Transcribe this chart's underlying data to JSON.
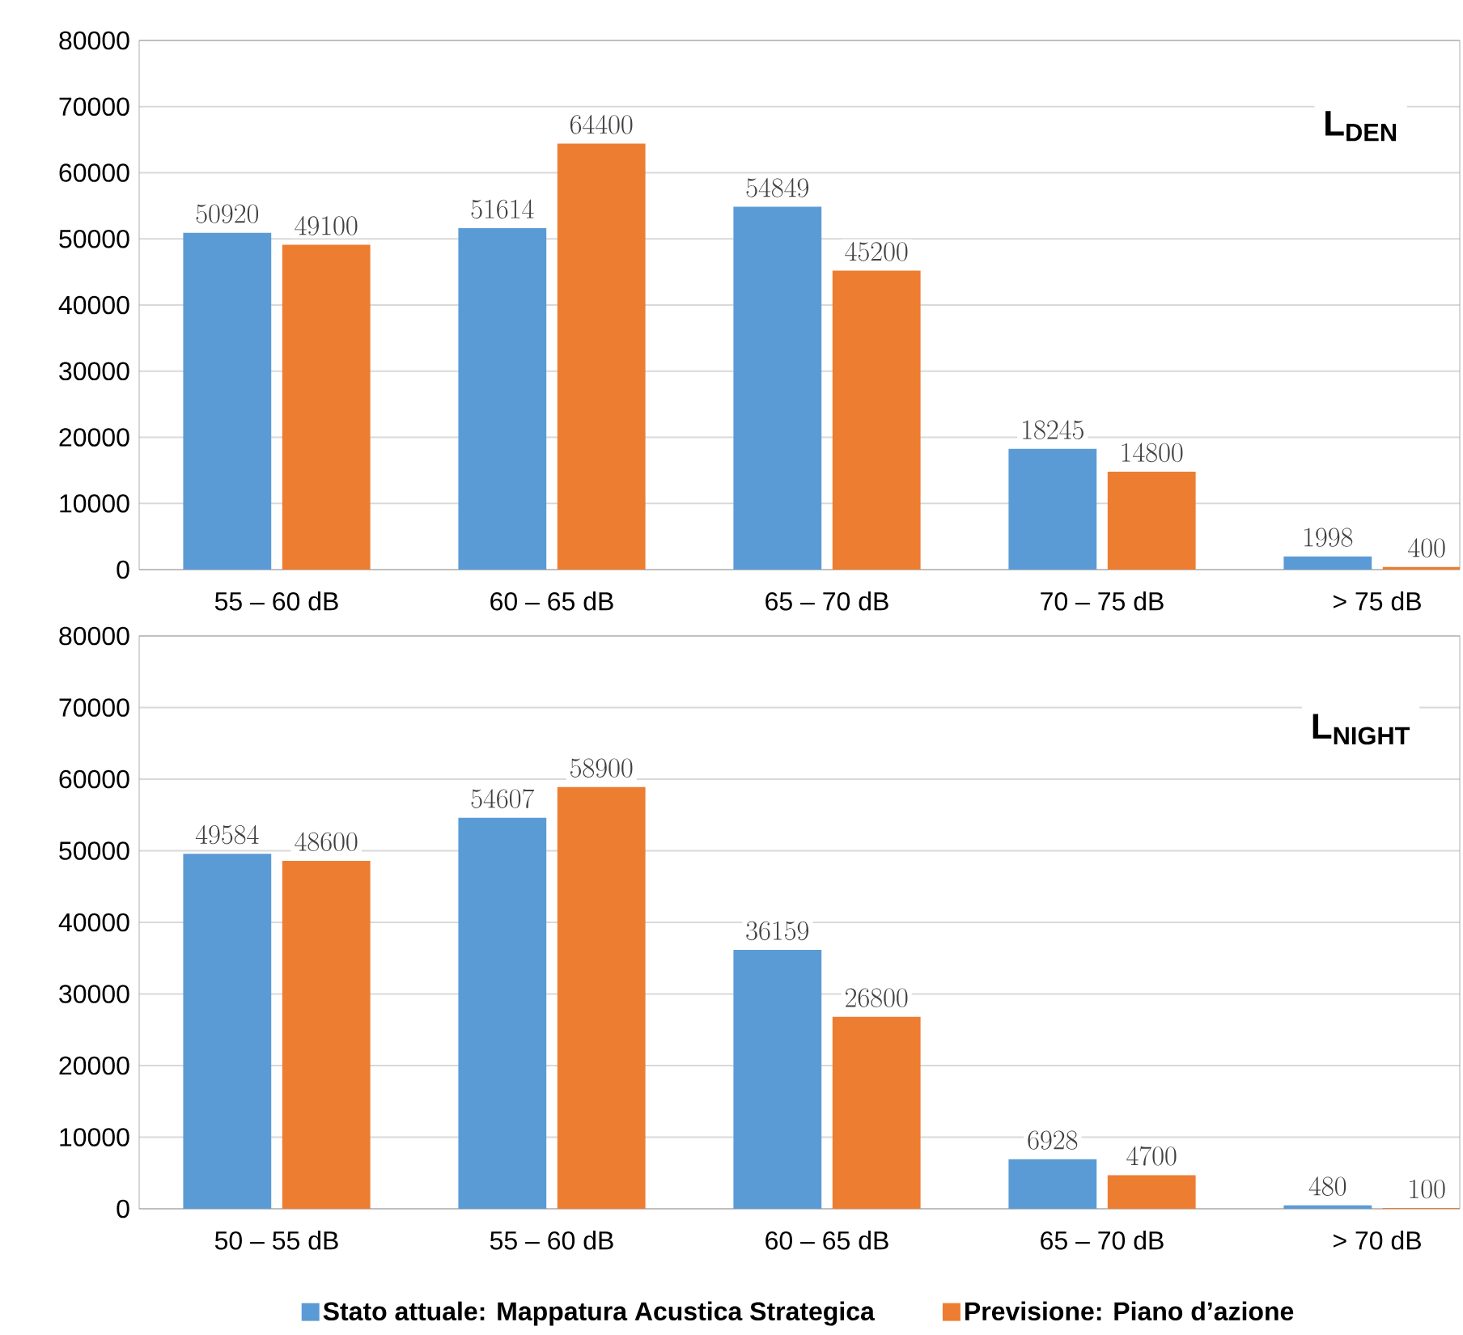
{
  "chart_data": [
    {
      "type": "bar",
      "title": "L$_{DEN}$",
      "categories": [
        "55 – 60 dB",
        "60 – 65  dB",
        "65 – 70  dB",
        "70 – 75 dB",
        "> 75 dB"
      ],
      "series": [
        {
          "color": "#5b9bd5",
          "values": [
            50920,
            51614,
            54849,
            18245,
            1998
          ]
        },
        {
          "color": "#ed7d31",
          "values": [
            49100,
            64400,
            45200,
            14800,
            400
          ]
        }
      ],
      "ylim": [
        0,
        80000
      ],
      "yticks": [
        0,
        10000,
        20000,
        30000,
        40000,
        50000,
        60000,
        70000,
        80000
      ],
      "grid": "y",
      "data_labels": true
    },
    {
      "type": "bar",
      "title": "L$_{NIGHT}$",
      "categories": [
        "50 – 55 dB",
        "55 – 60 dB",
        "60 – 65 dB",
        "65 – 70 dB",
        "> 70 dB"
      ],
      "series": [
        {
          "name": "Stato attuale: Mappatura Acustica Strategica",
          "color": "#5b9bd5",
          "values": [
            49584,
            54607,
            36159,
            6928,
            480
          ]
        },
        {
          "name": "Previsione: Piano d’azione",
          "color": "#ed7d31",
          "values": [
            48600,
            58900,
            26800,
            4700,
            100
          ]
        }
      ],
      "ylim": [
        0,
        80000
      ],
      "yticks": [
        0,
        10000,
        20000,
        30000,
        40000,
        50000,
        60000,
        70000,
        80000
      ],
      "grid": "y",
      "data_labels": true,
      "legend": "bottom"
    }
  ]
}
